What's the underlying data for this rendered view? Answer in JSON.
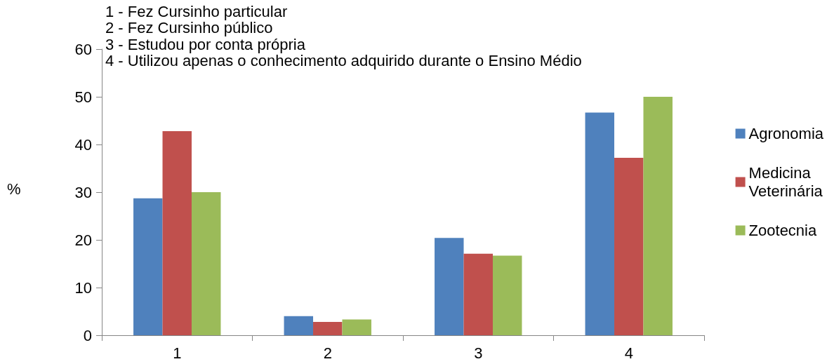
{
  "chart_data": {
    "type": "bar",
    "ylabel": "%",
    "categories": [
      "1",
      "2",
      "3",
      "4"
    ],
    "series": [
      {
        "name": "Agronomia",
        "color": "#4f81bd",
        "values": [
          28.7,
          4.0,
          20.4,
          46.7
        ]
      },
      {
        "name": "Medicina Veterinária",
        "color": "#c0504d",
        "values": [
          42.8,
          2.8,
          17.1,
          37.2
        ]
      },
      {
        "name": "Zootecnia",
        "color": "#9bbb59",
        "values": [
          30.0,
          3.3,
          16.7,
          50.0
        ]
      }
    ],
    "ylim": [
      0,
      60
    ],
    "yticks": [
      0,
      10,
      20,
      30,
      40,
      50,
      60
    ],
    "grid": false,
    "legend": "right",
    "annotations": [
      "1 - Fez Cursinho particular",
      "2 - Fez Cursinho público",
      "3 - Estudou por conta própria",
      "4 - Utilizou apenas o conhecimento adquirido durante o Ensino Médio"
    ]
  }
}
